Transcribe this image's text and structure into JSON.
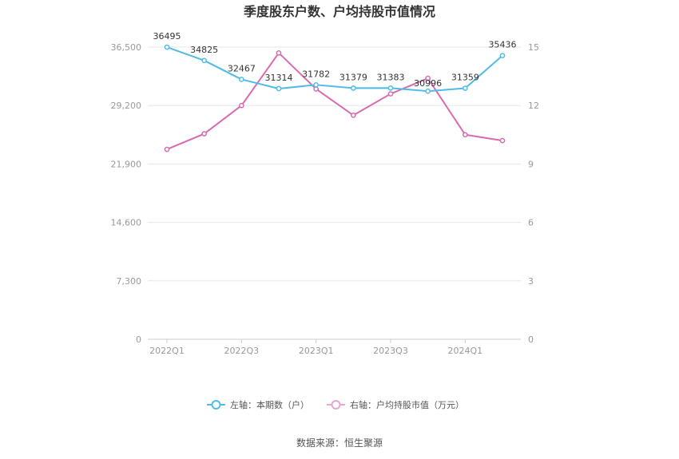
{
  "chart_data": {
    "type": "line",
    "title": "季度股东户数、户均持股市值情况",
    "categories": [
      "2022Q1",
      "2022Q2",
      "2022Q3",
      "2022Q4",
      "2023Q1",
      "2023Q2",
      "2023Q3",
      "2023Q4",
      "2024Q1",
      "2024Q2"
    ],
    "x_tick_labels": [
      "2022Q1",
      "",
      "2022Q3",
      "",
      "2023Q1",
      "",
      "2023Q3",
      "",
      "2024Q1",
      ""
    ],
    "left_axis": {
      "ylim": [
        0,
        36500
      ],
      "ticks": [
        0,
        7300,
        14600,
        21900,
        29200,
        36500
      ],
      "tick_labels": [
        "0",
        "7,300",
        "14,600",
        "21,900",
        "29,200",
        "36,500"
      ]
    },
    "right_axis": {
      "ylim": [
        0,
        15
      ],
      "ticks": [
        0,
        3,
        6,
        9,
        12,
        15
      ],
      "tick_labels": [
        "0",
        "3",
        "6",
        "9",
        "12",
        "15"
      ]
    },
    "series": [
      {
        "name": "左轴：本期数（户）",
        "axis": "left",
        "color": "#4fbbe8",
        "values": [
          36495,
          34825,
          32467,
          31314,
          31782,
          31379,
          31383,
          30996,
          31359,
          35436
        ],
        "labels": [
          "36495",
          "34825",
          "32467",
          "31314",
          "31782",
          "31379",
          "31383",
          "30996",
          "31359",
          "35436"
        ]
      },
      {
        "name": "右轴：户均持股市值（万元）",
        "axis": "right",
        "color": "#d86bb0",
        "values": [
          9.75,
          10.55,
          12.0,
          14.7,
          12.85,
          11.5,
          12.6,
          13.4,
          10.5,
          10.2
        ]
      }
    ],
    "grid": true,
    "legend_position": "bottom"
  },
  "source_text": "数据来源：恒生聚源"
}
